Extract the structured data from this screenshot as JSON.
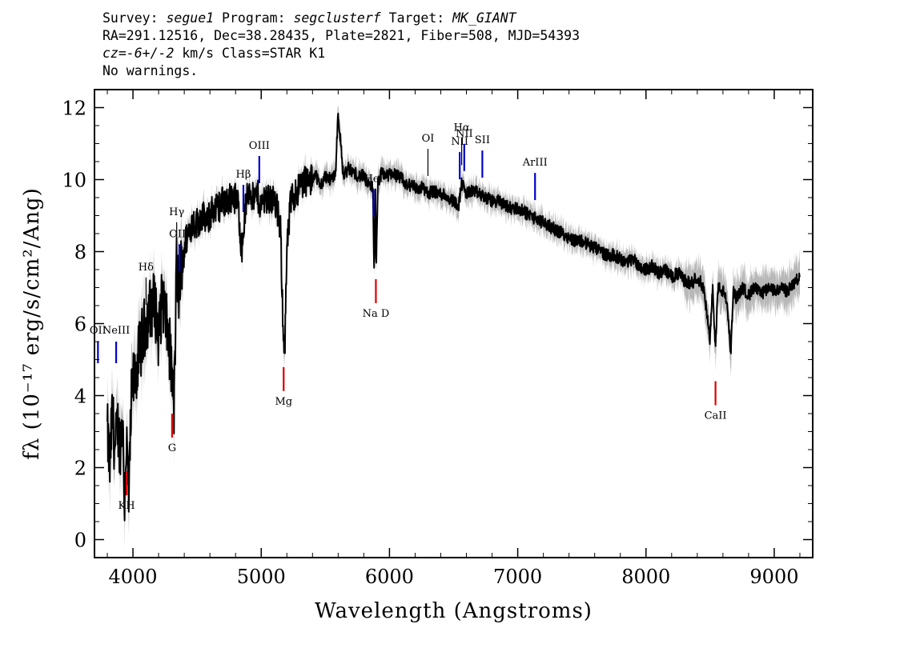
{
  "header": {
    "survey_label": "Survey: ",
    "survey": "segue1",
    "program_label": " Program: ",
    "program": "segclusterf",
    "target_label": " Target: ",
    "target": "MK_GIANT",
    "line2": "RA=291.12516, Dec=38.28435, Plate=2821, Fiber=508, MJD=54393",
    "cz_label": "cz",
    "cz_value": "=-6+/-2",
    "cz_rest": " km/s Class=STAR K1",
    "line4": "No warnings."
  },
  "chart_data": {
    "type": "line",
    "xlabel": "Wavelength (Angstroms)",
    "ylabel": "fλ (10⁻¹⁷ erg/s/cm²/Ang)",
    "xlim": [
      3700,
      9300
    ],
    "ylim": [
      -0.5,
      12.5
    ],
    "xticks": [
      4000,
      5000,
      6000,
      7000,
      8000,
      9000
    ],
    "yticks": [
      0,
      2,
      4,
      6,
      8,
      10,
      12
    ],
    "colors": {
      "flux": "#000000",
      "error_band": "#b8b8b8",
      "emission": "#0000cc",
      "absorption": "#dd0000",
      "other": "#000000"
    },
    "series": [
      {
        "x": [
          3800,
          3820,
          3840,
          3860,
          3880,
          3900,
          3920,
          3933,
          3950,
          3968,
          3990,
          4020,
          4060,
          4100,
          4130,
          4170,
          4200,
          4230,
          4260,
          4290,
          4305,
          4320,
          4340,
          4360,
          4380,
          4420,
          4460,
          4500,
          4540,
          4580,
          4620,
          4660,
          4700,
          4740,
          4780,
          4820,
          4850,
          4861,
          4880,
          4910,
          4940,
          4970,
          5000,
          5030,
          5060,
          5090,
          5120,
          5150,
          5170,
          5183,
          5200,
          5230,
          5260,
          5300,
          5340,
          5380,
          5420,
          5460,
          5500,
          5540,
          5580,
          5600,
          5640,
          5680,
          5720,
          5760,
          5800,
          5840,
          5870,
          5880,
          5890,
          5896,
          5910,
          5940,
          5980,
          6020,
          6060,
          6100,
          6140,
          6180,
          6220,
          6260,
          6300,
          6340,
          6380,
          6420,
          6460,
          6500,
          6540,
          6563,
          6600,
          6650,
          6700,
          6750,
          6800,
          6850,
          6900,
          6950,
          7000,
          7050,
          7100,
          7150,
          7200,
          7250,
          7300,
          7350,
          7400,
          7450,
          7500,
          7550,
          7600,
          7650,
          7700,
          7750,
          7800,
          7850,
          7900,
          7950,
          8000,
          8050,
          8100,
          8150,
          8200,
          8250,
          8300,
          8350,
          8400,
          8450,
          8498,
          8520,
          8542,
          8560,
          8600,
          8630,
          8662,
          8680,
          8700,
          8750,
          8800,
          8850,
          8900,
          8950,
          9000,
          9050,
          9100,
          9150,
          9200
        ],
        "y": [
          3.0,
          2.0,
          3.6,
          2.4,
          3.2,
          2.6,
          3.4,
          1.0,
          2.8,
          1.0,
          4.2,
          4.6,
          5.4,
          6.0,
          6.4,
          6.6,
          5.6,
          6.8,
          6.0,
          5.2,
          4.4,
          3.6,
          7.6,
          6.8,
          7.8,
          8.4,
          8.8,
          8.8,
          9.0,
          8.8,
          9.2,
          9.2,
          9.4,
          9.4,
          9.6,
          9.3,
          8.0,
          8.6,
          9.3,
          9.8,
          9.4,
          9.6,
          9.2,
          9.6,
          9.4,
          9.5,
          9.2,
          8.6,
          6.0,
          5.2,
          8.0,
          9.4,
          9.6,
          9.8,
          10.0,
          9.9,
          10.2,
          9.8,
          10.1,
          10.0,
          10.2,
          11.9,
          10.1,
          10.3,
          10.2,
          10.1,
          10.1,
          9.8,
          9.8,
          7.6,
          9.6,
          7.4,
          9.9,
          10.2,
          10.1,
          10.2,
          10.1,
          10.0,
          9.8,
          9.9,
          9.7,
          9.8,
          9.6,
          9.7,
          9.6,
          9.6,
          9.5,
          9.4,
          9.3,
          9.9,
          9.6,
          9.7,
          9.6,
          9.5,
          9.4,
          9.4,
          9.3,
          9.2,
          9.2,
          9.1,
          9.0,
          8.9,
          8.8,
          8.7,
          8.6,
          8.5,
          8.4,
          8.3,
          8.3,
          8.2,
          8.1,
          8.0,
          7.9,
          7.9,
          7.8,
          7.7,
          7.8,
          7.6,
          7.5,
          7.6,
          7.4,
          7.5,
          7.3,
          7.4,
          7.2,
          7.1,
          7.3,
          7.0,
          5.5,
          7.0,
          5.3,
          7.0,
          6.9,
          6.6,
          5.2,
          6.9,
          6.7,
          7.0,
          6.8,
          7.0,
          6.8,
          7.0,
          6.9,
          7.0,
          6.9,
          7.1,
          7.3
        ]
      }
    ],
    "lines": [
      {
        "label": "OII",
        "wave": 3727,
        "color": "blue",
        "kind": "emission"
      },
      {
        "label": "NeIII",
        "wave": 3869,
        "color": "blue",
        "kind": "emission"
      },
      {
        "label": "Hδ",
        "wave": 4102,
        "color": "black",
        "kind": "balmer"
      },
      {
        "label": "Hγ",
        "wave": 4341,
        "color": "black",
        "kind": "balmer"
      },
      {
        "label": "OIII",
        "wave": 4363,
        "color": "blue",
        "kind": "emission"
      },
      {
        "label": "Hβ",
        "wave": 4861,
        "color": "blue",
        "kind": "emission"
      },
      {
        "label": "OIII",
        "wave": 4985,
        "color": "blue",
        "kind": "emission"
      },
      {
        "label": "HeI",
        "wave": 5876,
        "color": "blue",
        "kind": "emission"
      },
      {
        "label": "OI",
        "wave": 6300,
        "color": "black",
        "kind": "other"
      },
      {
        "label": "NII",
        "wave": 6548,
        "color": "blue",
        "kind": "emission"
      },
      {
        "label": "Hα",
        "wave": 6563,
        "color": "black",
        "kind": "balmer"
      },
      {
        "label": "NII",
        "wave": 6583,
        "color": "blue",
        "kind": "emission"
      },
      {
        "label": "SII",
        "wave": 6724,
        "color": "blue",
        "kind": "emission"
      },
      {
        "label": "ArIII",
        "wave": 7135,
        "color": "blue",
        "kind": "emission"
      },
      {
        "label": "KH",
        "wave": 3950,
        "color": "red",
        "kind": "absorption"
      },
      {
        "label": "G",
        "wave": 4305,
        "color": "red",
        "kind": "absorption"
      },
      {
        "label": "Mg",
        "wave": 5175,
        "color": "red",
        "kind": "absorption"
      },
      {
        "label": "Na D",
        "wave": 5894,
        "color": "red",
        "kind": "absorption"
      },
      {
        "label": "CaII",
        "wave": 8542,
        "color": "red",
        "kind": "absorption"
      }
    ]
  }
}
